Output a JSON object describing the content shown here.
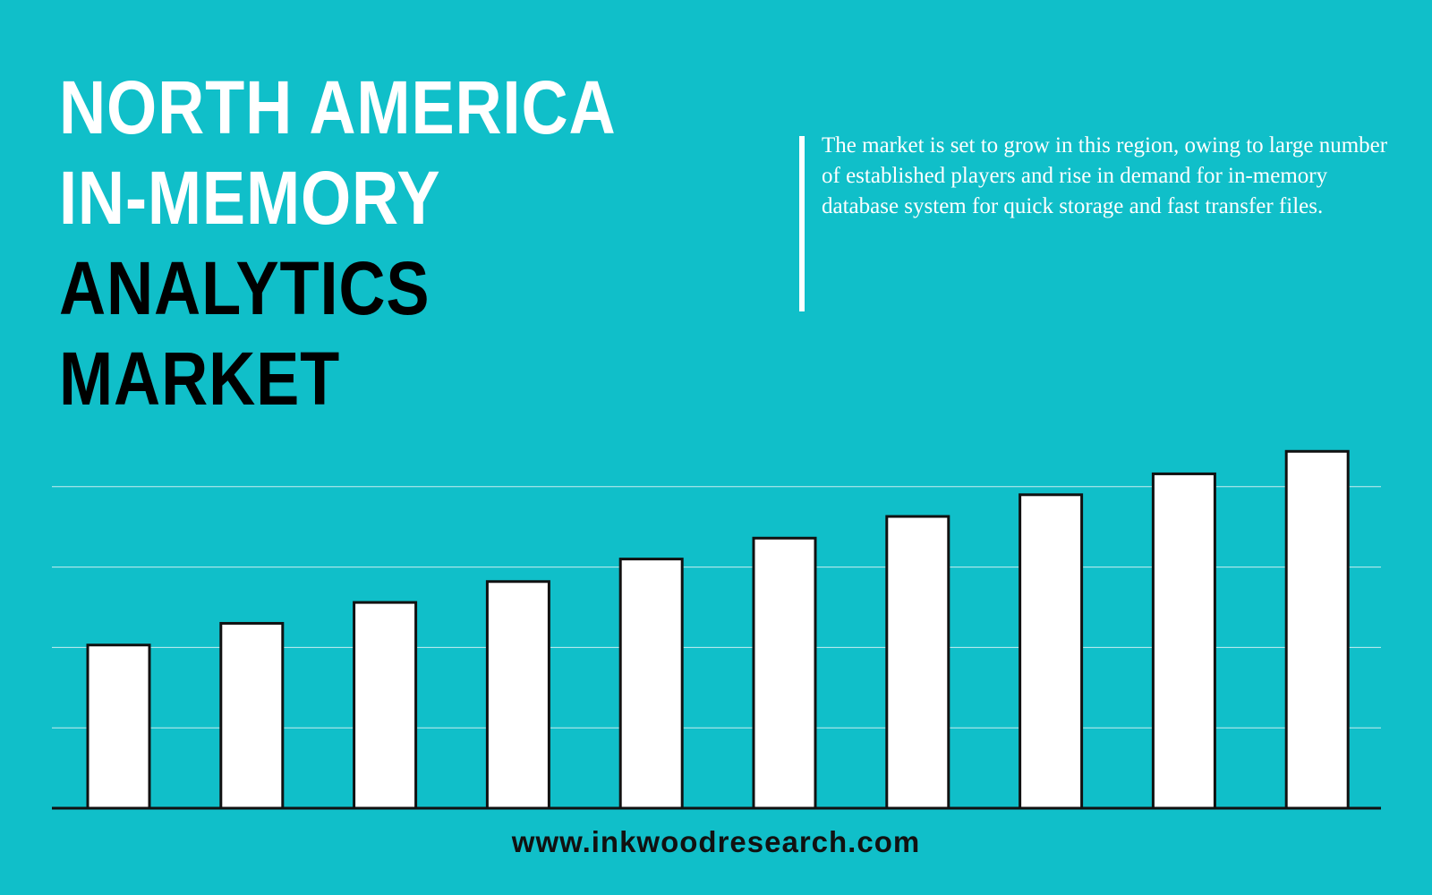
{
  "chart_data": {
    "type": "bar",
    "title_lines": [
      {
        "text": "NORTH AMERICA",
        "color": "#ffffff"
      },
      {
        "text": "IN-MEMORY",
        "color": "#ffffff"
      },
      {
        "text": "ANALYTICS",
        "color": "#000000"
      },
      {
        "text": "MARKET",
        "color": "#000000"
      }
    ],
    "description": "The market is set to grow in this region, owing to large number of established players and rise in demand for in-memory database system for quick storage and fast transfer files.",
    "footer": "www.inkwoodresearch.com",
    "categories": [
      null,
      null,
      null,
      null,
      null,
      null,
      null,
      null,
      null,
      null
    ],
    "values": [
      2.03,
      2.3,
      2.56,
      2.82,
      3.1,
      3.36,
      3.63,
      3.9,
      4.16,
      4.44
    ],
    "color": "#ffffff",
    "ylim": [
      0,
      5
    ],
    "yticks": [
      0,
      1,
      2,
      3,
      4
    ],
    "grid": true
  }
}
